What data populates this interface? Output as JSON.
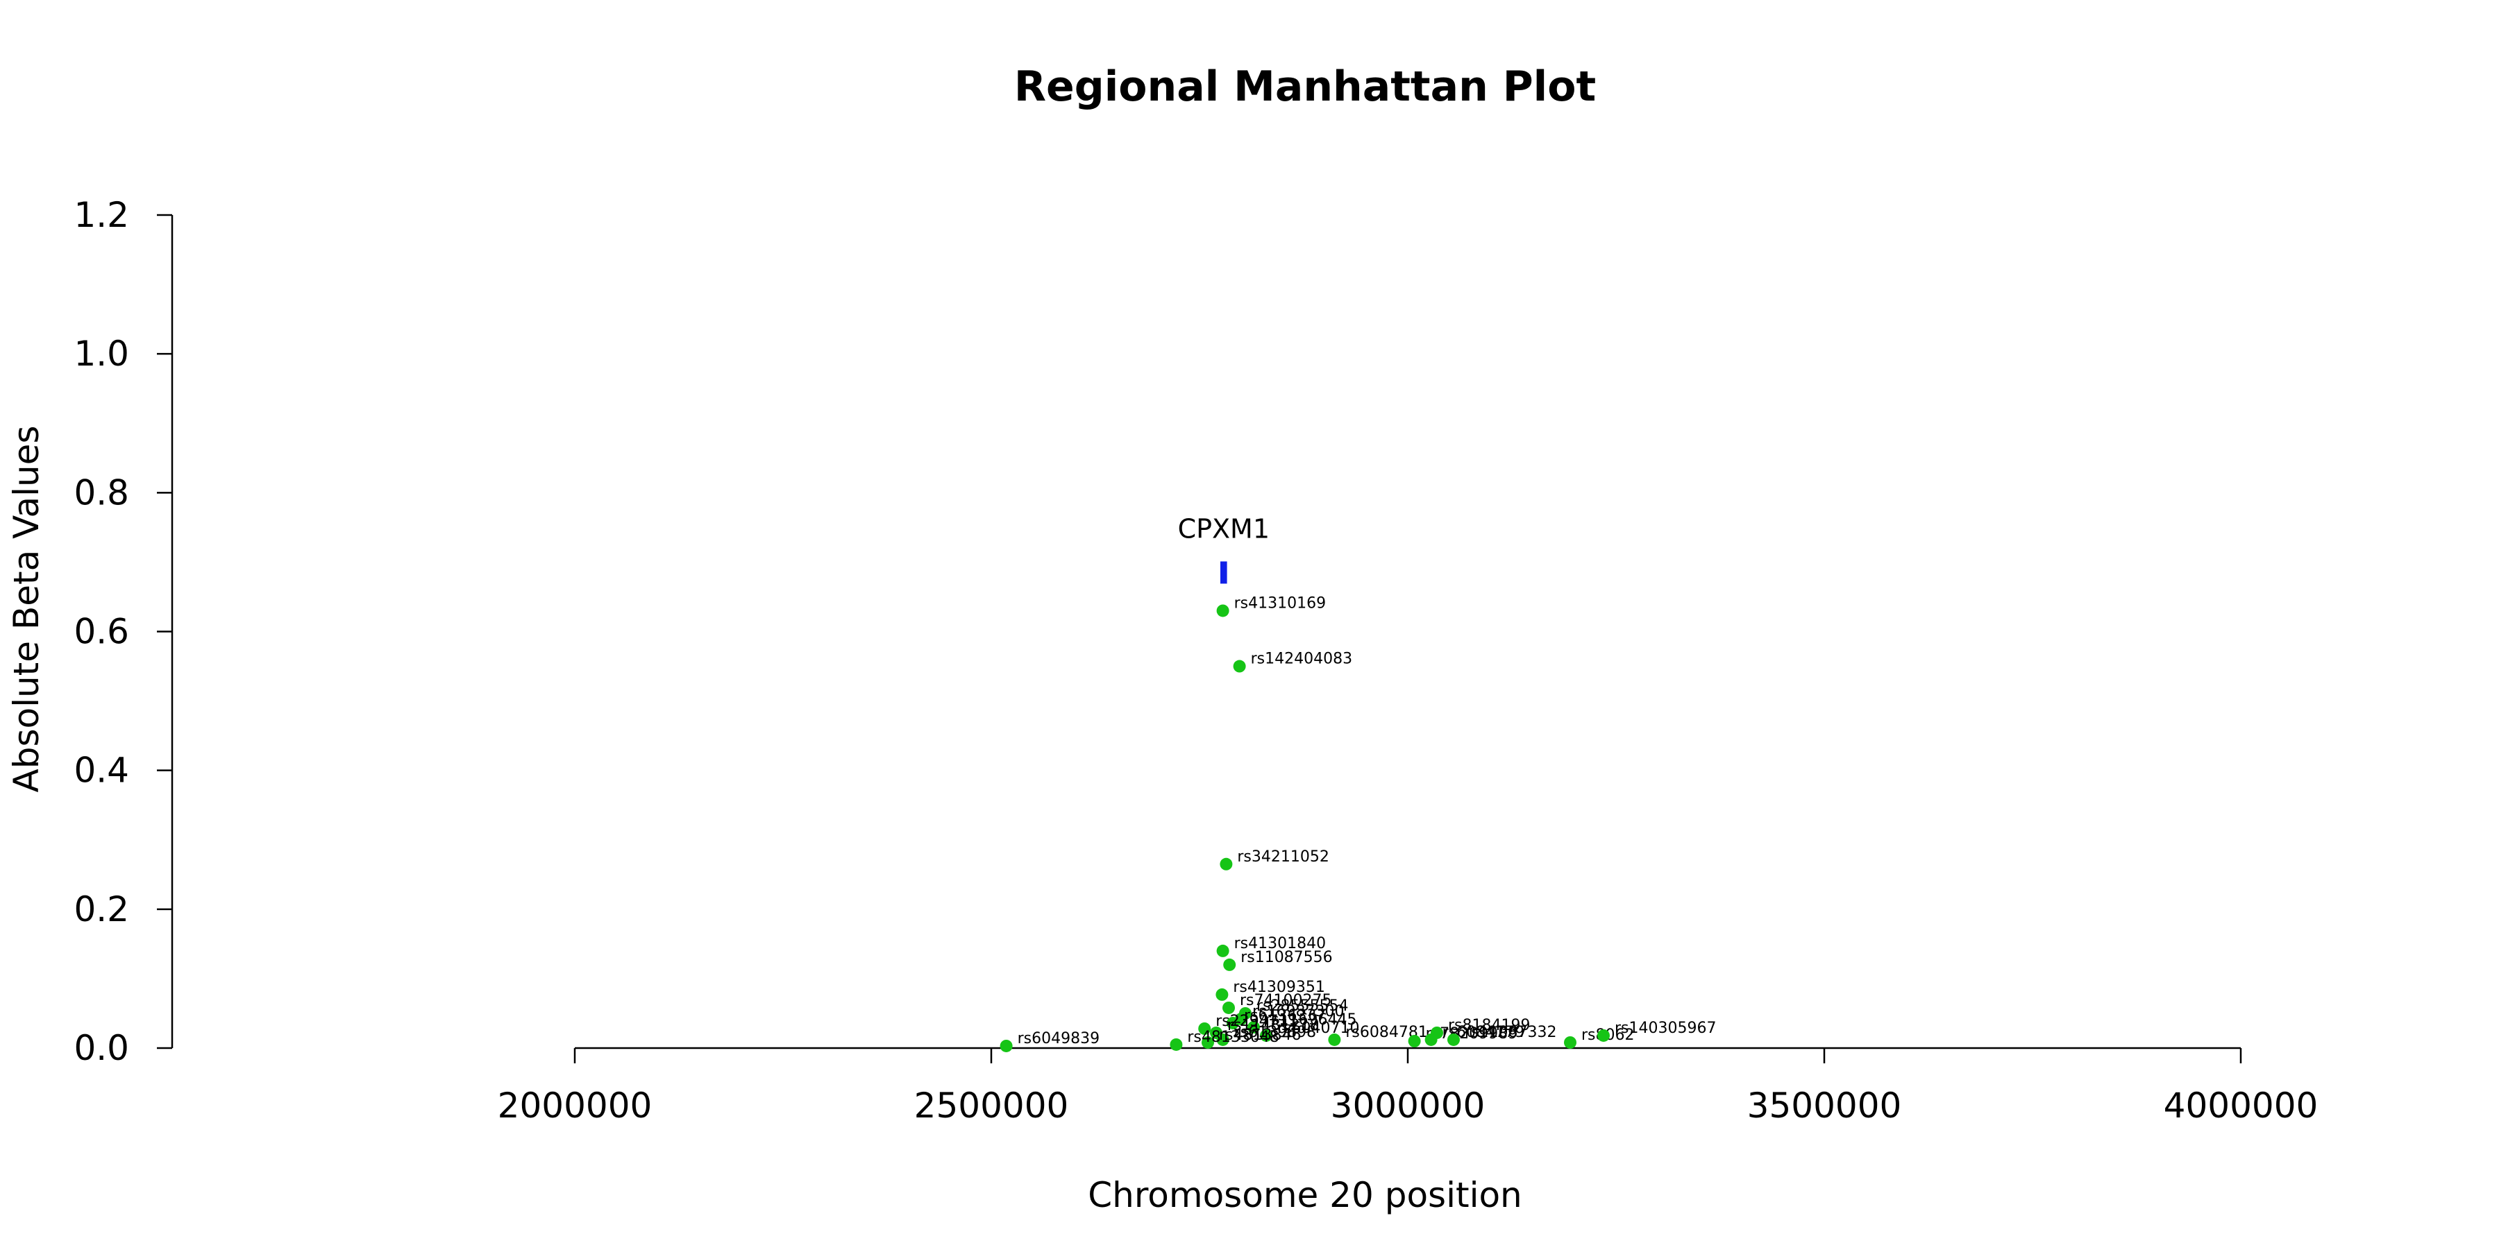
{
  "chart_data": {
    "type": "scatter",
    "title": "Regional Manhattan Plot",
    "xlabel": "Chromosome 20 position",
    "ylabel": "Absolute Beta Values",
    "xlim": [
      2000000,
      4000000
    ],
    "ylim": [
      0,
      1.2
    ],
    "x_ticks": [
      2000000,
      2500000,
      3000000,
      3500000,
      4000000
    ],
    "x_tick_labels": [
      "2000000",
      "2500000",
      "3000000",
      "3500000",
      "4000000"
    ],
    "y_ticks": [
      0,
      0.2,
      0.4,
      0.6,
      0.8,
      1.0,
      1.2
    ],
    "y_tick_labels": [
      "0.0",
      "0.2",
      "0.4",
      "0.6",
      "0.8",
      "1.0",
      "1.2"
    ],
    "grid": false,
    "legend": "none",
    "point_color": "#16c416",
    "gene_color": "#1020e8",
    "genes": [
      {
        "name": "CPXM1",
        "start": 2775000,
        "end": 2783000,
        "y": 0.685
      }
    ],
    "points": [
      {
        "x": 2778000,
        "y": 0.63,
        "label": "rs41310169"
      },
      {
        "x": 2798000,
        "y": 0.55,
        "label": "rs142404083"
      },
      {
        "x": 2782000,
        "y": 0.265,
        "label": "rs34211052"
      },
      {
        "x": 2778000,
        "y": 0.14,
        "label": "rs41301840"
      },
      {
        "x": 2786000,
        "y": 0.12,
        "label": "rs11087556"
      },
      {
        "x": 2777000,
        "y": 0.077,
        "label": "rs41309351"
      },
      {
        "x": 2785000,
        "y": 0.058,
        "label": "rs74100275"
      },
      {
        "x": 2805000,
        "y": 0.05,
        "label": "rs28555554"
      },
      {
        "x": 2800000,
        "y": 0.042,
        "label": "rs16987300"
      },
      {
        "x": 2790000,
        "y": 0.036,
        "label": "rs6136337"
      },
      {
        "x": 2815000,
        "y": 0.03,
        "label": "rs11696445"
      },
      {
        "x": 2756000,
        "y": 0.028,
        "label": "rs2294711"
      },
      {
        "x": 2770000,
        "y": 0.022,
        "label": "rs11481218"
      },
      {
        "x": 2830000,
        "y": 0.018,
        "label": "rs6040710"
      },
      {
        "x": 2778000,
        "y": 0.012,
        "label": "rs6139898"
      },
      {
        "x": 2760000,
        "y": 0.008,
        "label": "rs4813846"
      },
      {
        "x": 2722000,
        "y": 0.005,
        "label": "rs48133048"
      },
      {
        "x": 2912000,
        "y": 0.012,
        "label": "rs6084781"
      },
      {
        "x": 3008000,
        "y": 0.01,
        "label": "rs78209989"
      },
      {
        "x": 3028000,
        "y": 0.012,
        "label": "rs6084779"
      },
      {
        "x": 3035000,
        "y": 0.022,
        "label": "rs8184199"
      },
      {
        "x": 3055000,
        "y": 0.012,
        "label": "rs11087332"
      },
      {
        "x": 3195000,
        "y": 0.008,
        "label": "rs8062"
      },
      {
        "x": 3235000,
        "y": 0.018,
        "label": "rs140305967"
      },
      {
        "x": 2518000,
        "y": 0.003,
        "label": "rs6049839"
      }
    ]
  }
}
